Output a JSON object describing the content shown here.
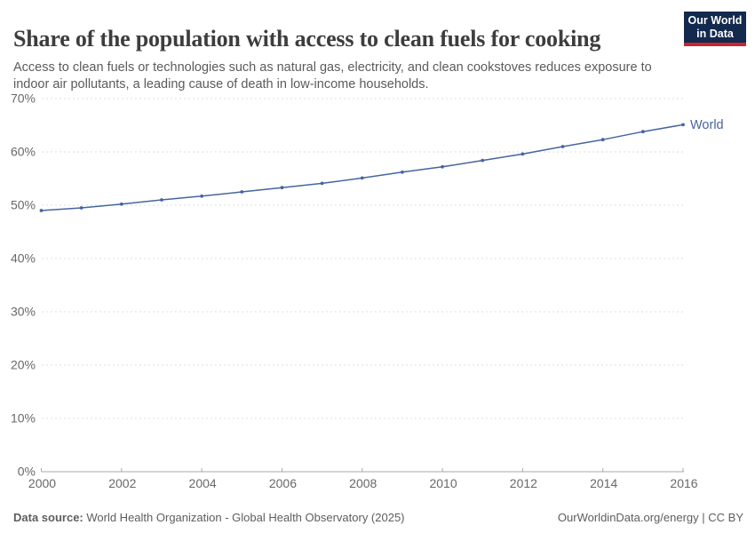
{
  "header": {
    "title": "Share of the population with access to clean fuels for cooking",
    "subtitle": "Access to clean fuels or technologies such as natural gas, electricity, and clean cookstoves reduces exposure to indoor air pollutants, a leading cause of death in low-income households.",
    "logo": {
      "line1": "Our World",
      "line2": "in Data"
    }
  },
  "chart_data": {
    "type": "line",
    "title": "Share of the population with access to clean fuels for cooking",
    "x": [
      2000,
      2001,
      2002,
      2003,
      2004,
      2005,
      2006,
      2007,
      2008,
      2009,
      2010,
      2011,
      2012,
      2013,
      2014,
      2015,
      2016
    ],
    "series": [
      {
        "name": "World",
        "color": "#4665a0",
        "values": [
          49.0,
          49.5,
          50.2,
          51.0,
          51.7,
          52.5,
          53.3,
          54.1,
          55.1,
          56.2,
          57.2,
          58.4,
          59.6,
          61.0,
          62.3,
          63.8,
          65.1
        ]
      }
    ],
    "xlabel": "",
    "ylabel": "",
    "xlim": [
      2000,
      2016
    ],
    "ylim": [
      0,
      70
    ],
    "y_ticks": [
      0,
      10,
      20,
      30,
      40,
      50,
      60,
      70
    ],
    "y_tick_suffix": "%",
    "x_ticks": [
      2000,
      2002,
      2004,
      2006,
      2008,
      2010,
      2012,
      2014,
      2016
    ],
    "grid": "horizontal-dashed",
    "legend_position": "end-of-line"
  },
  "colors": {
    "line": "#4665a0",
    "grid": "#dddddd",
    "axis": "#a9a9a9",
    "tick_label": "#686868",
    "title": "#3d3d3d",
    "subtitle": "#5b5b5b",
    "footer": "#5e5e5e",
    "logo_bg": "#13294e",
    "logo_stripe": "#c7252d"
  },
  "footer": {
    "data_source_label": "Data source:",
    "data_source_text": " World Health Organization - Global Health Observatory (2025)",
    "site": "OurWorldinData.org/energy",
    "separator": " | ",
    "license": "CC BY"
  }
}
